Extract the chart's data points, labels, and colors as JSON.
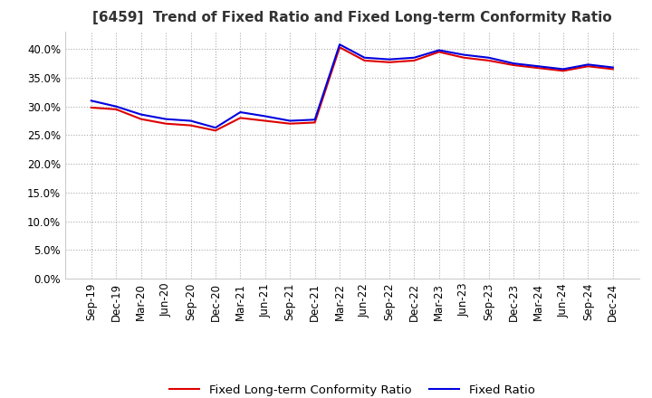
{
  "title": "[6459]  Trend of Fixed Ratio and Fixed Long-term Conformity Ratio",
  "title_fontsize": 11,
  "background_color": "#ffffff",
  "plot_background": "#ffffff",
  "grid_color": "#aaaaaa",
  "x_labels": [
    "Sep-19",
    "Dec-19",
    "Mar-20",
    "Jun-20",
    "Sep-20",
    "Dec-20",
    "Mar-21",
    "Jun-21",
    "Sep-21",
    "Dec-21",
    "Mar-22",
    "Jun-22",
    "Sep-22",
    "Dec-22",
    "Mar-23",
    "Jun-23",
    "Sep-23",
    "Dec-23",
    "Mar-24",
    "Jun-24",
    "Sep-24",
    "Dec-24"
  ],
  "fixed_ratio": [
    31.0,
    30.0,
    28.6,
    27.8,
    27.5,
    26.3,
    29.0,
    28.3,
    27.5,
    27.7,
    40.8,
    38.5,
    38.2,
    38.5,
    39.8,
    39.0,
    38.5,
    37.5,
    37.0,
    36.5,
    37.3,
    36.8
  ],
  "fixed_lt_ratio": [
    29.8,
    29.5,
    27.8,
    27.0,
    26.7,
    25.8,
    28.0,
    27.5,
    27.0,
    27.2,
    40.3,
    38.0,
    37.7,
    38.0,
    39.5,
    38.5,
    38.0,
    37.2,
    36.7,
    36.2,
    37.0,
    36.5
  ],
  "fixed_ratio_color": "#0000dd",
  "fixed_lt_ratio_color": "#dd0000",
  "ylim": [
    0,
    43
  ],
  "yticks": [
    0.0,
    5.0,
    10.0,
    15.0,
    20.0,
    25.0,
    30.0,
    35.0,
    40.0
  ],
  "legend_fixed_ratio": "Fixed Ratio",
  "legend_fixed_lt": "Fixed Long-term Conformity Ratio",
  "tick_fontsize": 8.5
}
